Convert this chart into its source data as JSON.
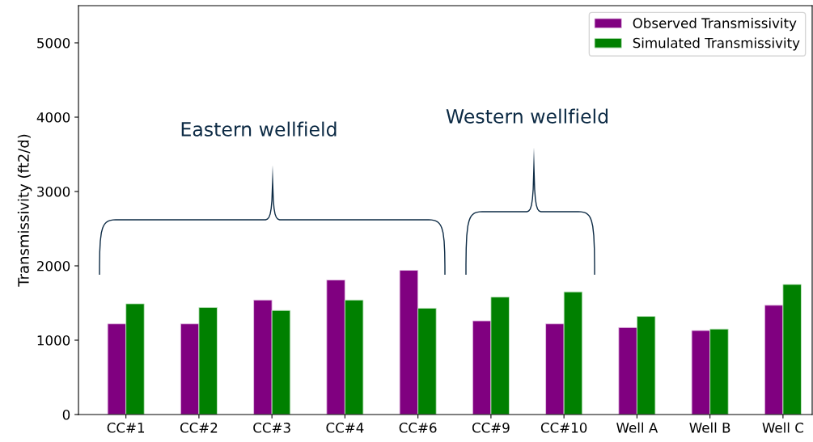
{
  "chart_data": {
    "type": "bar",
    "categories": [
      "CC#1",
      "CC#2",
      "CC#3",
      "CC#4",
      "CC#6",
      "CC#9",
      "CC#10",
      "Well A",
      "Well B",
      "Well C"
    ],
    "series": [
      {
        "name": "Observed Transmissivity",
        "color": "#800080",
        "values": [
          1220,
          1220,
          1540,
          1810,
          1940,
          1260,
          1220,
          1170,
          1130,
          1470
        ]
      },
      {
        "name": "Simulated Transmissivity",
        "color": "#008000",
        "values": [
          1490,
          1440,
          1400,
          1540,
          1430,
          1580,
          1650,
          1320,
          1150,
          1750
        ]
      }
    ],
    "ylabel": "Transmissivity (ft2/d)",
    "ylim": [
      0,
      5500
    ],
    "yticks": [
      0,
      1000,
      2000,
      3000,
      4000,
      5000
    ],
    "annotations": [
      "Eastern wellfield",
      "Western wellfield"
    ],
    "legend": "top right",
    "grid": false
  }
}
